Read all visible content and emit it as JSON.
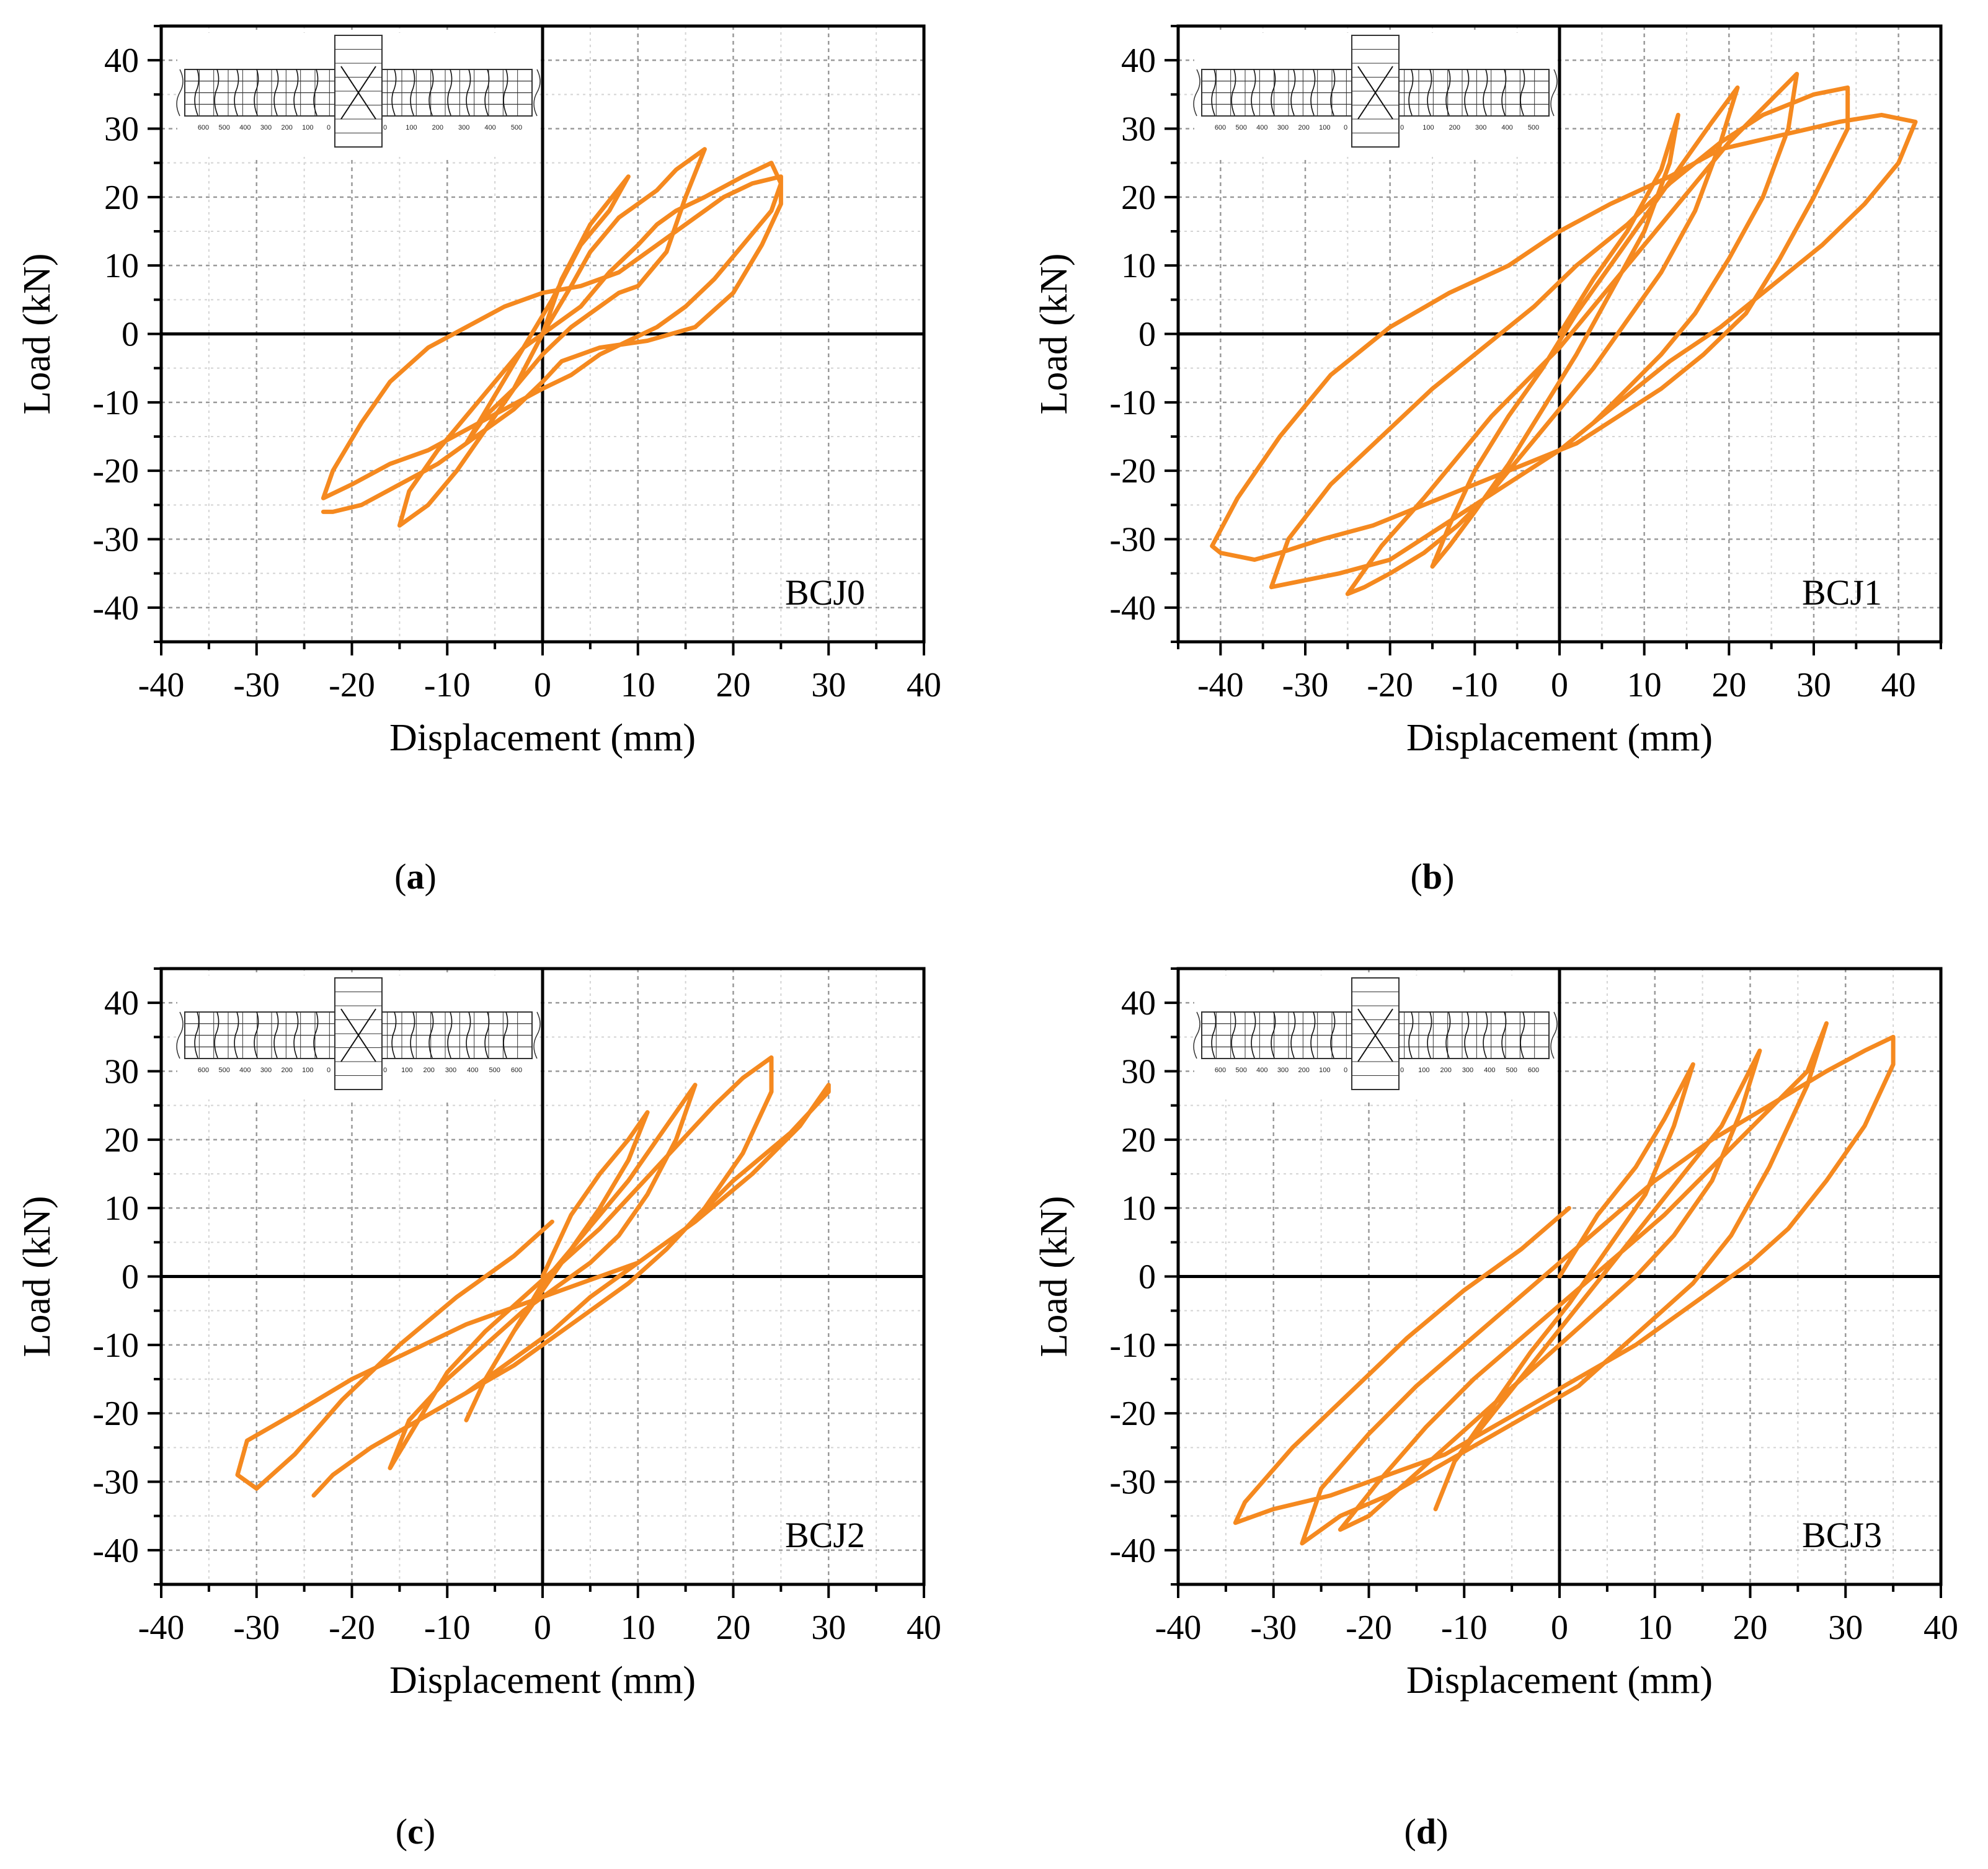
{
  "colors": {
    "curve": "#f5891f",
    "axis": "#000000",
    "grid": "#9a9a9a",
    "minor_grid": "#d4d4d4",
    "inset": "#333333"
  },
  "inset": {
    "left_ticks": [
      "600",
      "500",
      "400",
      "300",
      "200",
      "100",
      "0"
    ],
    "right_ticks": [
      "0",
      "100",
      "200",
      "300",
      "400",
      "500"
    ],
    "right_ticks_bc": [
      "0",
      "100",
      "200",
      "300",
      "400",
      "500",
      "600"
    ]
  },
  "chart_data": [
    {
      "id": "a",
      "type": "line",
      "panel_label": "BCJ0",
      "caption_letter": "a",
      "xlabel": "Displacement (mm)",
      "ylabel": "Load (kN)",
      "xlim": [
        -40,
        40
      ],
      "ylim": [
        -45,
        45
      ],
      "xticks": [
        "-40",
        "-30",
        "-20",
        "-10",
        "0",
        "10",
        "20",
        "30",
        "40"
      ],
      "yticks": [
        "40",
        "30",
        "20",
        "10",
        "0",
        "-10",
        "-20",
        "-30",
        "-40"
      ],
      "grid": true,
      "series": [
        {
          "x": [
            0,
            2,
            5,
            9,
            7,
            4,
            1,
            -2,
            -5,
            -8,
            -6,
            -3,
            0,
            3,
            5,
            8,
            10,
            12,
            14,
            17,
            15,
            13,
            10,
            8,
            5,
            3,
            0,
            -3,
            -6,
            -9,
            -12,
            -15,
            -14,
            -11,
            -8,
            -5,
            -2,
            1,
            4,
            7,
            10,
            12,
            14,
            17,
            21,
            24,
            25,
            24,
            21,
            18,
            15,
            12,
            9,
            6,
            3,
            0,
            -4,
            -8,
            -12,
            -16,
            -20,
            -23,
            -22,
            -19,
            -16,
            -12,
            -8,
            -4,
            0,
            4,
            8,
            12,
            16,
            19,
            22,
            25,
            25,
            23,
            20,
            16,
            11,
            6,
            2,
            0,
            -3,
            -7,
            -11,
            -15,
            -19,
            -22,
            -23
          ],
          "y": [
            0,
            8,
            16,
            23,
            18,
            13,
            5,
            -2,
            -9,
            -16,
            -12,
            -8,
            0,
            7,
            12,
            17,
            19,
            21,
            24,
            27,
            20,
            12,
            7,
            6,
            3,
            1,
            -3,
            -8,
            -14,
            -20,
            -25,
            -28,
            -23,
            -17,
            -12,
            -7,
            -2,
            1,
            4,
            9,
            13,
            16,
            18,
            20,
            23,
            25,
            22,
            18,
            13,
            8,
            4,
            1,
            -1,
            -3,
            -6,
            -8,
            -11,
            -14,
            -17,
            -19,
            -22,
            -24,
            -20,
            -13,
            -7,
            -2,
            1,
            4,
            6,
            7,
            9,
            13,
            17,
            20,
            22,
            23,
            19,
            13,
            6,
            1,
            -1,
            -2,
            -4,
            -7,
            -11,
            -15,
            -19,
            -22,
            -25,
            -26,
            -26
          ]
        }
      ]
    },
    {
      "id": "b",
      "type": "line",
      "panel_label": "BCJ1",
      "caption_letter": "b",
      "xlabel": "Displacement (mm)",
      "ylabel": "Load (kN)",
      "xlim": [
        -45,
        45
      ],
      "ylim": [
        -45,
        45
      ],
      "xticks": [
        "-40",
        "-30",
        "-20",
        "-10",
        "0",
        "10",
        "20",
        "30",
        "40"
      ],
      "yticks": [
        "40",
        "30",
        "20",
        "10",
        "0",
        "-10",
        "-20",
        "-30",
        "-40"
      ],
      "grid": true,
      "series": [
        {
          "x": [
            0,
            4,
            8,
            12,
            14,
            13,
            10,
            6,
            2,
            -2,
            -6,
            -10,
            -13,
            -15,
            -13,
            -10,
            -6,
            -2,
            2,
            6,
            10,
            14,
            18,
            21,
            19,
            16,
            12,
            8,
            4,
            0,
            -4,
            -8,
            -12,
            -16,
            -20,
            -23,
            -25,
            -21,
            -16,
            -12,
            -8,
            -4,
            0,
            4,
            8,
            12,
            16,
            20,
            24,
            28,
            27,
            24,
            20,
            16,
            12,
            8,
            4,
            0,
            -5,
            -10,
            -15,
            -20,
            -26,
            -30,
            -34,
            -32,
            -27,
            -21,
            -15,
            -9,
            -3,
            2,
            8,
            13,
            19,
            24,
            30,
            34,
            34,
            30,
            26,
            22,
            17,
            12,
            7,
            2,
            -4,
            -10,
            -16,
            -22,
            -28,
            -33,
            -36,
            -40,
            -41,
            -38,
            -33,
            -27,
            -20,
            -13,
            -6,
            0,
            6,
            13,
            19,
            26,
            33,
            38,
            42,
            40,
            36,
            31,
            25,
            19,
            13,
            7,
            1
          ],
          "y": [
            0,
            8,
            15,
            24,
            32,
            25,
            15,
            6,
            -3,
            -11,
            -19,
            -26,
            -31,
            -34,
            -28,
            -20,
            -12,
            -5,
            3,
            10,
            17,
            24,
            31,
            36,
            28,
            18,
            9,
            2,
            -5,
            -11,
            -17,
            -23,
            -28,
            -32,
            -35,
            -37,
            -38,
            -31,
            -24,
            -18,
            -12,
            -7,
            -2,
            4,
            10,
            16,
            22,
            28,
            33,
            38,
            30,
            20,
            11,
            3,
            -3,
            -8,
            -13,
            -17,
            -21,
            -25,
            -29,
            -33,
            -35,
            -36,
            -37,
            -30,
            -22,
            -15,
            -8,
            -2,
            4,
            10,
            16,
            22,
            28,
            32,
            35,
            36,
            30,
            20,
            11,
            3,
            -3,
            -8,
            -12,
            -16,
            -19,
            -22,
            -25,
            -28,
            -30,
            -32,
            -33,
            -32,
            -31,
            -24,
            -15,
            -6,
            1,
            6,
            10,
            15,
            19,
            23,
            27,
            29,
            31,
            32,
            31,
            25,
            19,
            13,
            7,
            1,
            -4,
            -10,
            -16
          ]
        }
      ]
    },
    {
      "id": "c",
      "type": "line",
      "panel_label": "BCJ2",
      "caption_letter": "c",
      "xlabel": "Displacement (mm)",
      "ylabel": "Load (kN)",
      "xlim": [
        -40,
        40
      ],
      "ylim": [
        -45,
        45
      ],
      "xticks": [
        "-40",
        "-30",
        "-20",
        "-10",
        "0",
        "10",
        "20",
        "30",
        "40"
      ],
      "yticks": [
        "40",
        "30",
        "20",
        "10",
        "0",
        "-10",
        "-20",
        "-30",
        "-40"
      ],
      "grid": true,
      "series": [
        {
          "x": [
            0,
            3,
            6,
            9,
            11,
            9,
            6,
            3,
            0,
            -3,
            -6,
            -8,
            -6,
            -3,
            0,
            3,
            6,
            9,
            12,
            16,
            14,
            11,
            8,
            5,
            2,
            -2,
            -6,
            -10,
            -14,
            -16,
            -13,
            -10,
            -6,
            -2,
            2,
            6,
            10,
            14,
            18,
            21,
            24,
            24,
            21,
            17,
            13,
            9,
            5,
            1,
            -3,
            -8,
            -13,
            -18,
            -22,
            -24,
            -22,
            -18,
            -13,
            -8,
            -3,
            1,
            5,
            10,
            15,
            20,
            26,
            30,
            30,
            27,
            22,
            16,
            10,
            4,
            -2,
            -8,
            -14,
            -20,
            -26,
            -31,
            -32,
            -30,
            -26,
            -21,
            -15,
            -9,
            -3,
            1
          ],
          "y": [
            0,
            9,
            15,
            20,
            24,
            17,
            10,
            4,
            -2,
            -8,
            -15,
            -21,
            -15,
            -8,
            -1,
            4,
            9,
            14,
            20,
            28,
            20,
            12,
            6,
            2,
            -1,
            -5,
            -10,
            -15,
            -21,
            -28,
            -21,
            -14,
            -8,
            -3,
            2,
            7,
            13,
            19,
            25,
            29,
            32,
            27,
            18,
            10,
            4,
            -1,
            -5,
            -9,
            -13,
            -17,
            -21,
            -25,
            -29,
            -32,
            -29,
            -25,
            -21,
            -17,
            -12,
            -8,
            -3,
            2,
            7,
            14,
            21,
            27,
            28,
            22,
            15,
            8,
            2,
            -1,
            -4,
            -7,
            -11,
            -15,
            -20,
            -24,
            -29,
            -31,
            -26,
            -18,
            -10,
            -3,
            3,
            8
          ]
        }
      ]
    },
    {
      "id": "d",
      "type": "line",
      "panel_label": "BCJ3",
      "caption_letter": "d",
      "xlabel": "Displacement (mm)",
      "ylabel": "Load (kN)",
      "xlim": [
        -40,
        40
      ],
      "ylim": [
        -45,
        45
      ],
      "xticks": [
        "-40",
        "-30",
        "-20",
        "-10",
        "0",
        "10",
        "20",
        "30",
        "40"
      ],
      "yticks": [
        "40",
        "30",
        "20",
        "10",
        "0",
        "-10",
        "-20",
        "-30",
        "-40"
      ],
      "grid": true,
      "series": [
        {
          "x": [
            0,
            4,
            8,
            11,
            14,
            12,
            9,
            5,
            1,
            -3,
            -7,
            -11,
            -13,
            -11,
            -7,
            -3,
            1,
            5,
            9,
            13,
            17,
            21,
            19,
            16,
            12,
            8,
            4,
            0,
            -4,
            -8,
            -12,
            -16,
            -20,
            -23,
            -19,
            -14,
            -9,
            -4,
            1,
            6,
            11,
            16,
            21,
            26,
            28,
            26,
            22,
            18,
            14,
            10,
            6,
            2,
            -3,
            -8,
            -13,
            -18,
            -23,
            -27,
            -25,
            -20,
            -15,
            -10,
            -5,
            0,
            5,
            10,
            16,
            22,
            28,
            32,
            35,
            35,
            32,
            28,
            24,
            20,
            16,
            12,
            8,
            3,
            -2,
            -7,
            -12,
            -18,
            -24,
            -30,
            -34,
            -33,
            -28,
            -22,
            -16,
            -10,
            -4,
            1
          ],
          "y": [
            0,
            9,
            16,
            23,
            31,
            22,
            12,
            4,
            -4,
            -11,
            -19,
            -27,
            -34,
            -27,
            -20,
            -13,
            -6,
            1,
            8,
            15,
            22,
            33,
            24,
            14,
            6,
            0,
            -5,
            -10,
            -15,
            -20,
            -25,
            -30,
            -35,
            -37,
            -30,
            -22,
            -15,
            -9,
            -3,
            3,
            9,
            16,
            23,
            30,
            37,
            28,
            16,
            6,
            -1,
            -6,
            -11,
            -16,
            -20,
            -24,
            -28,
            -32,
            -35,
            -39,
            -31,
            -23,
            -16,
            -10,
            -4,
            2,
            8,
            14,
            20,
            25,
            30,
            33,
            35,
            31,
            22,
            14,
            7,
            2,
            -2,
            -6,
            -10,
            -14,
            -18,
            -22,
            -26,
            -29,
            -32,
            -34,
            -36,
            -33,
            -25,
            -17,
            -9,
            -2,
            4,
            10
          ]
        }
      ]
    }
  ]
}
